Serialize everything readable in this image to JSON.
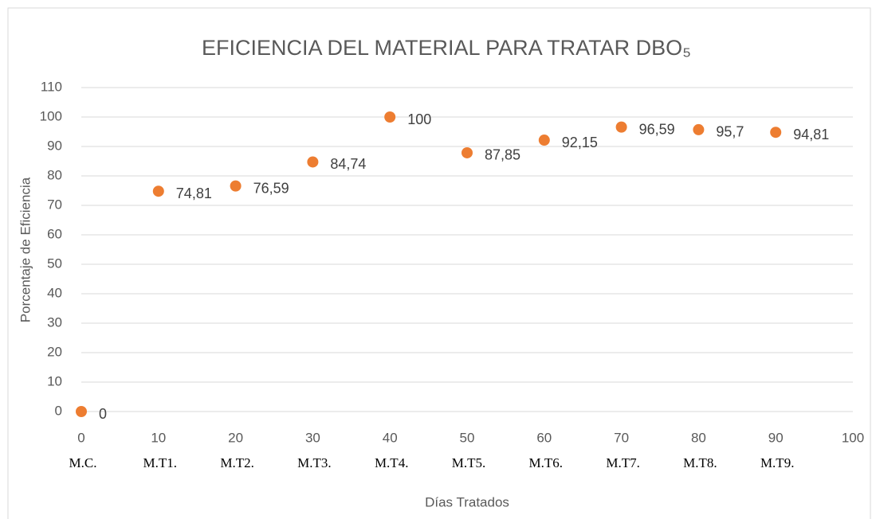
{
  "chart_data": {
    "type": "scatter",
    "title": "EFICIENCIA DEL MATERIAL PARA TRATAR DBO₅",
    "x_label": "Días Tratados",
    "y_label": "Porcentaje de Eficiencia",
    "x": [
      0,
      10,
      20,
      30,
      40,
      50,
      60,
      70,
      80,
      90
    ],
    "values": [
      0,
      74.81,
      76.59,
      84.74,
      100,
      87.85,
      92.15,
      96.59,
      95.7,
      94.81
    ],
    "value_labels": [
      "0",
      "74,81",
      "76,59",
      "84,74",
      "100",
      "87,85",
      "92,15",
      "96,59",
      "95,7",
      "94,81"
    ],
    "annotations": [
      "M.C.",
      "M.T1.",
      "M.T2.",
      "M.T3.",
      "M.T4.",
      "M.T5.",
      "M.T6.",
      "M.T7.",
      "M.T8.",
      "M.T9."
    ],
    "color": "#ED7D31",
    "xlim": [
      0,
      100
    ],
    "xticks": [
      0,
      10,
      20,
      30,
      40,
      50,
      60,
      70,
      80,
      90,
      100
    ],
    "ylim": [
      0,
      110
    ],
    "yticks": [
      0,
      10,
      20,
      30,
      40,
      50,
      60,
      70,
      80,
      90,
      100,
      110
    ],
    "grid": true
  }
}
